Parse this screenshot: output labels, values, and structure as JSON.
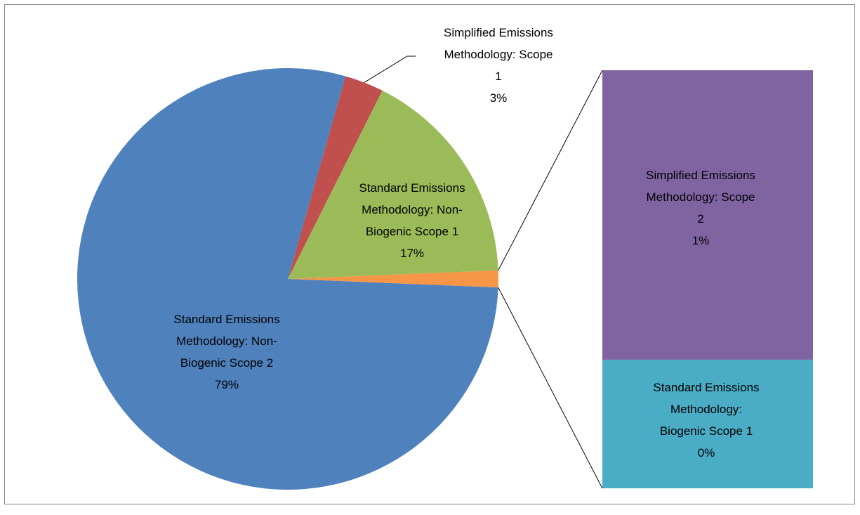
{
  "chart_data": {
    "type": "bar-of-pie",
    "categories": [
      "Standard Emissions Methodology: Non-Biogenic Scope 2",
      "Simplified Emissions Methodology: Scope 1",
      "Standard Emissions Methodology: Non-Biogenic Scope 1",
      "Simplified Emissions Methodology: Scope 2",
      "Standard Emissions Methodology: Biogenic Scope 1"
    ],
    "values": [
      79,
      3,
      17,
      0.9,
      0.4
    ],
    "value_labels": [
      "79%",
      "3%",
      "17%",
      "1%",
      "0%"
    ],
    "colors": [
      "#4f81bd",
      "#c0504d",
      "#9bbb59",
      "#8064a2",
      "#4bacc6"
    ],
    "other_color": "#f79646",
    "secondary_count": 2
  }
}
